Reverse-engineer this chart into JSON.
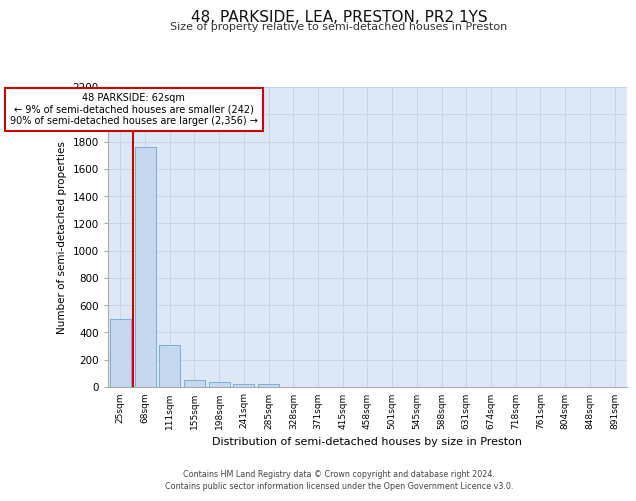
{
  "title": "48, PARKSIDE, LEA, PRESTON, PR2 1YS",
  "subtitle": "Size of property relative to semi-detached houses in Preston",
  "xlabel": "Distribution of semi-detached houses by size in Preston",
  "ylabel": "Number of semi-detached properties",
  "categories": [
    "25sqm",
    "68sqm",
    "111sqm",
    "155sqm",
    "198sqm",
    "241sqm",
    "285sqm",
    "328sqm",
    "371sqm",
    "415sqm",
    "458sqm",
    "501sqm",
    "545sqm",
    "588sqm",
    "631sqm",
    "674sqm",
    "718sqm",
    "761sqm",
    "804sqm",
    "848sqm",
    "891sqm"
  ],
  "values": [
    500,
    1760,
    305,
    50,
    35,
    25,
    20,
    0,
    0,
    0,
    0,
    0,
    0,
    0,
    0,
    0,
    0,
    0,
    0,
    0,
    0
  ],
  "bar_color": "#c5d8f0",
  "bar_edge_color": "#7badd4",
  "ylim": [
    0,
    2200
  ],
  "yticks": [
    0,
    200,
    400,
    600,
    800,
    1000,
    1200,
    1400,
    1600,
    1800,
    2000,
    2200
  ],
  "red_line_x": 0.5,
  "annotation_title": "48 PARKSIDE: 62sqm",
  "annotation_line1": "← 9% of semi-detached houses are smaller (242)",
  "annotation_line2": "90% of semi-detached houses are larger (2,356) →",
  "annotation_box_color": "#ffffff",
  "annotation_box_edge": "#cc0000",
  "red_line_color": "#cc0000",
  "grid_color": "#c8d4e8",
  "background_color": "#dce8f5",
  "footer_line1": "Contains HM Land Registry data © Crown copyright and database right 2024.",
  "footer_line2": "Contains public sector information licensed under the Open Government Licence v3.0."
}
